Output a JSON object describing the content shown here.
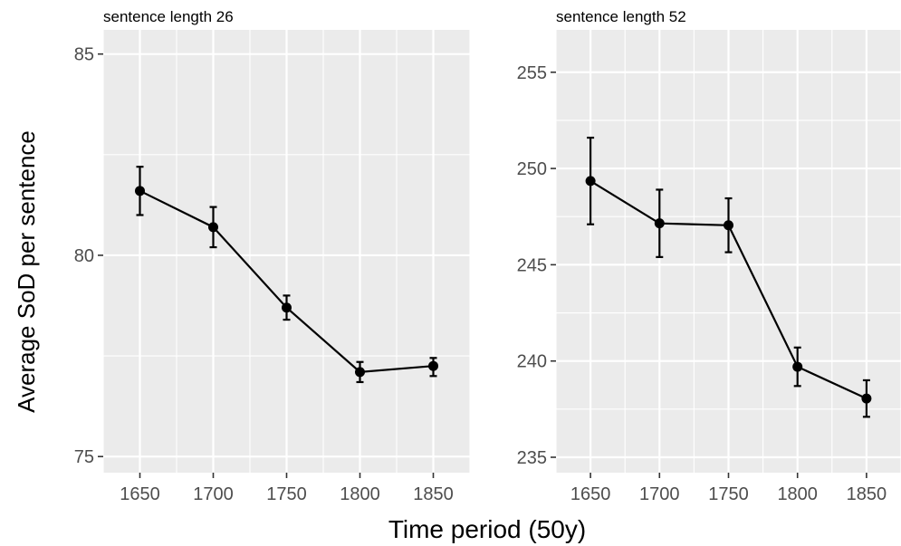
{
  "figure": {
    "xlabel": "Time period (50y)",
    "ylabel": "Average SoD per sentence"
  },
  "chart_data": [
    {
      "type": "line",
      "title": "sentence length 26",
      "x": [
        1650,
        1700,
        1750,
        1800,
        1850
      ],
      "y": [
        81.6,
        80.7,
        78.7,
        77.1,
        77.25
      ],
      "error_low": [
        81.0,
        80.2,
        78.4,
        76.85,
        77.0
      ],
      "error_high": [
        82.2,
        81.2,
        79.0,
        77.35,
        77.45
      ],
      "xlim": [
        1625,
        1875
      ],
      "ylim": [
        74.6,
        85.6
      ],
      "xticks": [
        "1650",
        "1700",
        "1750",
        "1800",
        "1850"
      ],
      "yticks": [
        75,
        80,
        85
      ],
      "ytick_labels": [
        "75",
        "80",
        "85"
      ],
      "grid": true
    },
    {
      "type": "line",
      "title": "sentence length 52",
      "x": [
        1650,
        1700,
        1750,
        1800,
        1850
      ],
      "y": [
        249.35,
        247.15,
        247.05,
        239.7,
        238.05
      ],
      "error_low": [
        247.1,
        245.4,
        245.65,
        238.7,
        237.1
      ],
      "error_high": [
        251.6,
        248.9,
        248.45,
        240.7,
        239.0
      ],
      "xlim": [
        1625,
        1875
      ],
      "ylim": [
        234.2,
        257.2
      ],
      "xticks": [
        "1650",
        "1700",
        "1750",
        "1800",
        "1850"
      ],
      "yticks": [
        235,
        240,
        245,
        250,
        255
      ],
      "ytick_labels": [
        "235",
        "240",
        "245",
        "250",
        "255"
      ],
      "grid": true
    }
  ]
}
